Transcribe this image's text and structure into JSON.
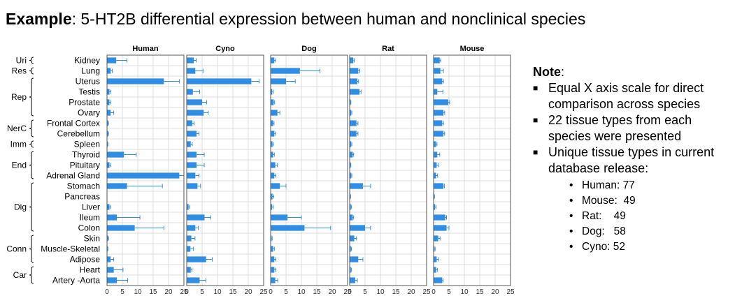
{
  "title": {
    "bold": "Example",
    "rest": ": 5-HT2B differential expression between human and nonclinical species"
  },
  "notes": {
    "heading": "Note",
    "heading_suffix": ":",
    "bullets": [
      "Equal X axis scale for direct comparison across species",
      "22 tissue types from each species were presented",
      "Unique tissue types in current database release:"
    ],
    "sub_bullets": [
      "Human: 77",
      "Mouse:  49",
      "Rat:    49",
      "Dog:   58",
      "Cyno: 52"
    ]
  },
  "colors": {
    "bar": "#2f8de4",
    "error": "#2f8de4",
    "grid": "#dcdcdc",
    "frame": "#555555"
  },
  "chart_data": {
    "type": "bar",
    "orientation": "horizontal",
    "xlim": [
      0,
      25
    ],
    "xticks": [
      0,
      5,
      10,
      15,
      20,
      25
    ],
    "grid": true,
    "categories": [
      "Kidney",
      "Lung",
      "Uterus",
      "Testis",
      "Prostate",
      "Ovary",
      "Frontal Cortex",
      "Cerebellum",
      "Spleen",
      "Thyroid",
      "Pituitary",
      "Adrenal Gland",
      "Stomach",
      "Pancreas",
      "Liver",
      "Ileum",
      "Colon",
      "Skin",
      "Muscle-Skeletal",
      "Adipose",
      "Heart",
      "Artery -Aorta"
    ],
    "groups": [
      {
        "label": "Uri",
        "rows": [
          0,
          0
        ]
      },
      {
        "label": "Res",
        "rows": [
          1,
          1
        ]
      },
      {
        "label": "Rep",
        "rows": [
          2,
          5
        ]
      },
      {
        "label": "NerC",
        "rows": [
          6,
          7
        ]
      },
      {
        "label": "Imm",
        "rows": [
          8,
          8
        ]
      },
      {
        "label": "End",
        "rows": [
          9,
          11
        ]
      },
      {
        "label": "Dig",
        "rows": [
          12,
          16
        ]
      },
      {
        "label": "Conn",
        "rows": [
          17,
          19
        ]
      },
      {
        "label": "Car",
        "rows": [
          20,
          21
        ]
      }
    ],
    "series": [
      {
        "name": "Human",
        "values": [
          3,
          1.2,
          18.5,
          0.8,
          0.8,
          1.2,
          0.3,
          0.3,
          0.2,
          5.5,
          0.8,
          23.5,
          6.5,
          0,
          0.8,
          3.2,
          9,
          0.3,
          0.2,
          1.2,
          2.2,
          3.2
        ],
        "errors": [
          3.5,
          0.5,
          5,
          0.4,
          0.4,
          1,
          0.2,
          0.2,
          0.1,
          4,
          0.4,
          1.5,
          11.5,
          0,
          0.4,
          7.5,
          9.5,
          0.2,
          0.1,
          1,
          3,
          3.5
        ]
      },
      {
        "name": "Cyno",
        "values": [
          2.3,
          2.8,
          21,
          2,
          5,
          5.5,
          1.8,
          3.2,
          1.3,
          3.2,
          3.2,
          2.8,
          3.5,
          0,
          0.6,
          5.8,
          2.8,
          1.5,
          1.2,
          6.3,
          1.3,
          4.2
        ],
        "errors": [
          0.8,
          2.5,
          2.5,
          2.2,
          1.5,
          1.5,
          0.6,
          0.8,
          0.5,
          2.5,
          2.5,
          1.2,
          1,
          0,
          0.4,
          2,
          1,
          1.2,
          1,
          2,
          0.4,
          2
        ]
      },
      {
        "name": "Dog",
        "values": [
          1.2,
          9.5,
          5,
          0.5,
          1,
          2.2,
          0.8,
          1.2,
          0.6,
          0.8,
          1.5,
          1.2,
          3,
          0.6,
          0.5,
          5.5,
          11,
          0.3,
          0.8,
          1.2,
          1.2,
          1.5
        ],
        "errors": [
          0.4,
          6.5,
          3,
          0.3,
          0.3,
          0.8,
          0.3,
          0.4,
          0.3,
          0.4,
          0.7,
          0.5,
          2,
          0.4,
          0.3,
          4.5,
          8.5,
          0.2,
          0.4,
          0.5,
          0.5,
          0.8
        ]
      },
      {
        "name": "Rat",
        "values": [
          1.2,
          2.8,
          2.5,
          3.2,
          0.3,
          0.5,
          2.2,
          2.2,
          0.5,
          1,
          0.3,
          0.5,
          4.3,
          0.2,
          0.4,
          1,
          5,
          1.5,
          0.4,
          2.8,
          0.4,
          1.8
        ],
        "errors": [
          0.3,
          0.5,
          0.4,
          0.5,
          0.1,
          0.2,
          0.5,
          0.5,
          0.2,
          0.3,
          0.1,
          0.2,
          2.5,
          0.1,
          0.2,
          0.3,
          1.8,
          0.7,
          0.2,
          1.5,
          0.2,
          0.7
        ]
      },
      {
        "name": "Mouse",
        "values": [
          2,
          2.2,
          2.8,
          1.2,
          4.8,
          3.2,
          2.8,
          3.2,
          0.8,
          1.2,
          1,
          0.8,
          3.2,
          0.2,
          0.5,
          3.8,
          4.2,
          1.5,
          0.3,
          1,
          0.8,
          2.8
        ],
        "errors": [
          0.3,
          1,
          0.4,
          1.8,
          0.4,
          0.4,
          0.4,
          0.4,
          0.3,
          0.8,
          0.6,
          0.5,
          0.3,
          0.1,
          0.3,
          0.4,
          0.8,
          0.6,
          0.2,
          0.6,
          0.4,
          0.3
        ]
      }
    ]
  }
}
